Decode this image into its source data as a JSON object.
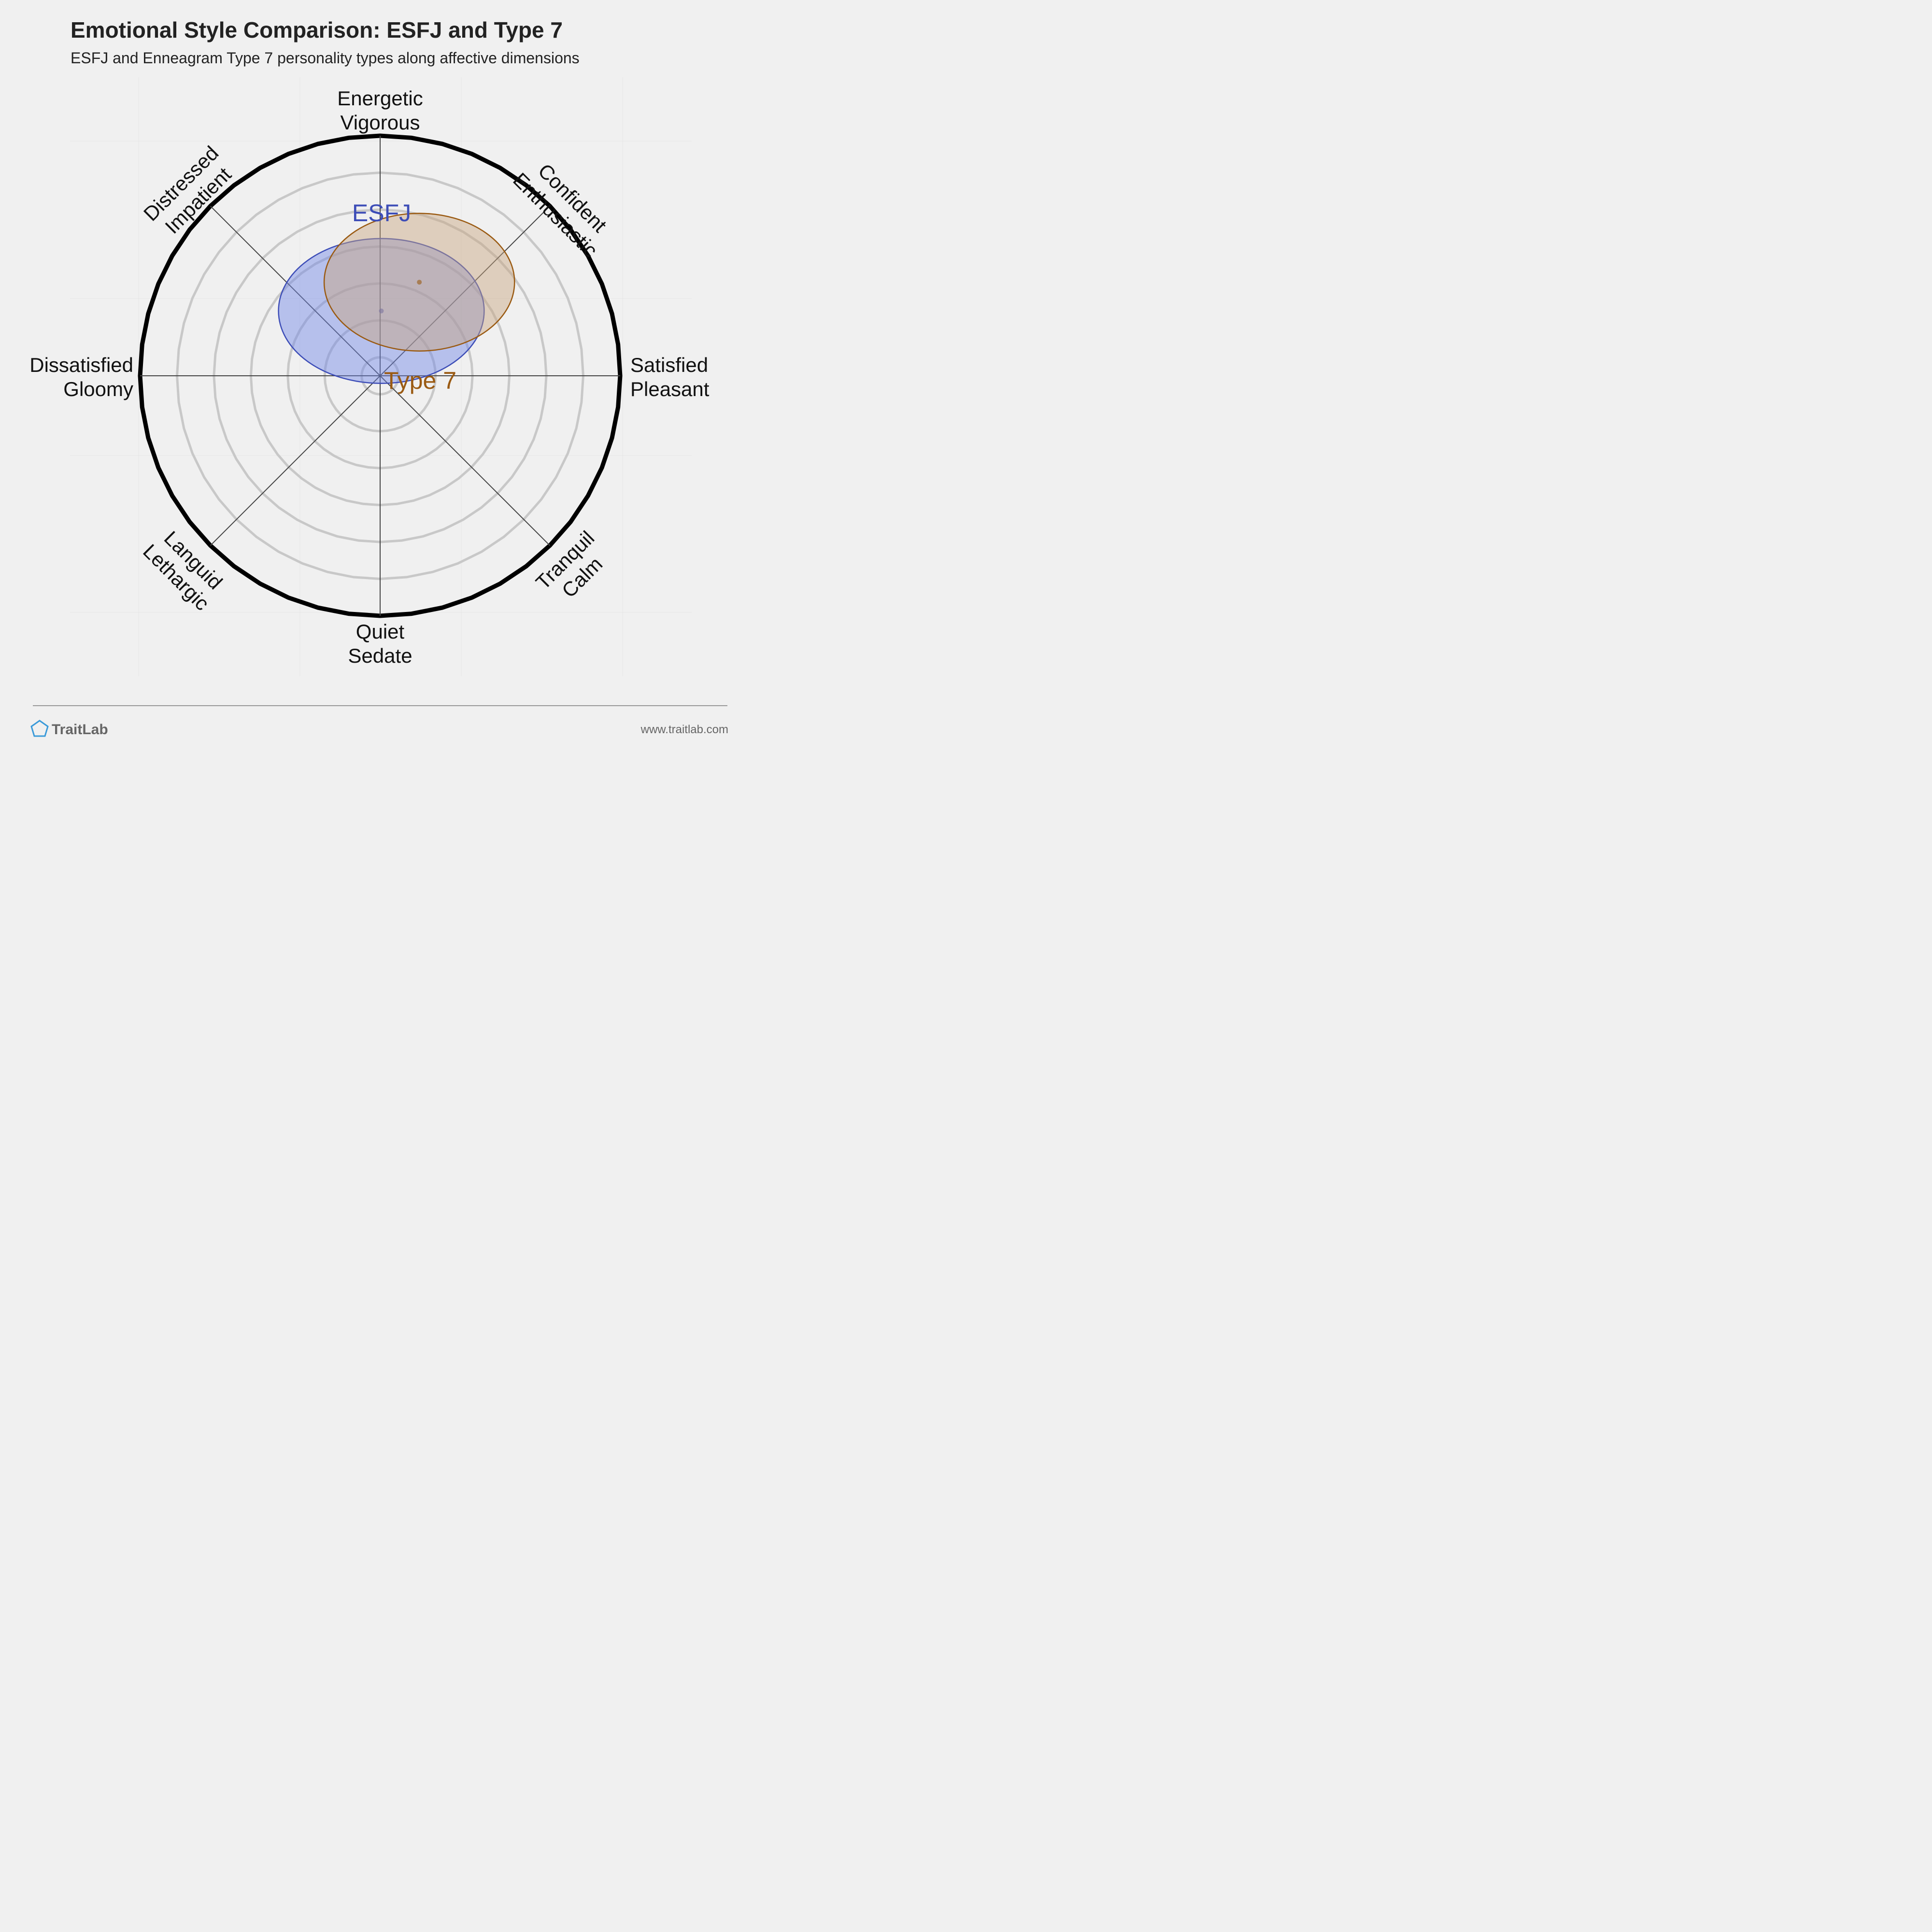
{
  "chart_data": {
    "type": "radar",
    "title": "Emotional Style Comparison: ESFJ and Type 7",
    "subtitle": "ESFJ and Enneagram Type 7 personality types along affective dimensions",
    "axes": [
      {
        "line1": "Energetic",
        "line2": "Vigorous"
      },
      {
        "line1": "Confident",
        "line2": "Enthusiastic"
      },
      {
        "line1": "Satisfied",
        "line2": "Pleasant"
      },
      {
        "line1": "Tranquil",
        "line2": "Calm"
      },
      {
        "line1": "Quiet",
        "line2": "Sedate"
      },
      {
        "line1": "Languid",
        "line2": "Lethargic"
      },
      {
        "line1": "Dissatisfied",
        "line2": "Gloomy"
      },
      {
        "line1": "Distressed",
        "line2": "Impatient"
      }
    ],
    "scale": {
      "rings": 7,
      "max": 6
    },
    "series": [
      {
        "name": "ESFJ",
        "center": {
          "x": 0.03,
          "y": 1.62
        },
        "spread": {
          "x": 2.57,
          "y": 1.81
        },
        "color": "#3d4db7",
        "fill": "#6f86e6"
      },
      {
        "name": "Type 7",
        "center": {
          "x": 0.98,
          "y": 2.34
        },
        "spread": {
          "x": 2.38,
          "y": 1.72
        },
        "color": "#9a5a12",
        "fill": "#c7a57f"
      }
    ]
  },
  "footer": {
    "brand": "TraitLab",
    "url": "www.traitlab.com"
  },
  "colors": {
    "background": "#f0f0f0",
    "outer_ring": "#000000",
    "inner_rings": "#c8c8c8",
    "spokes": "#444444"
  }
}
